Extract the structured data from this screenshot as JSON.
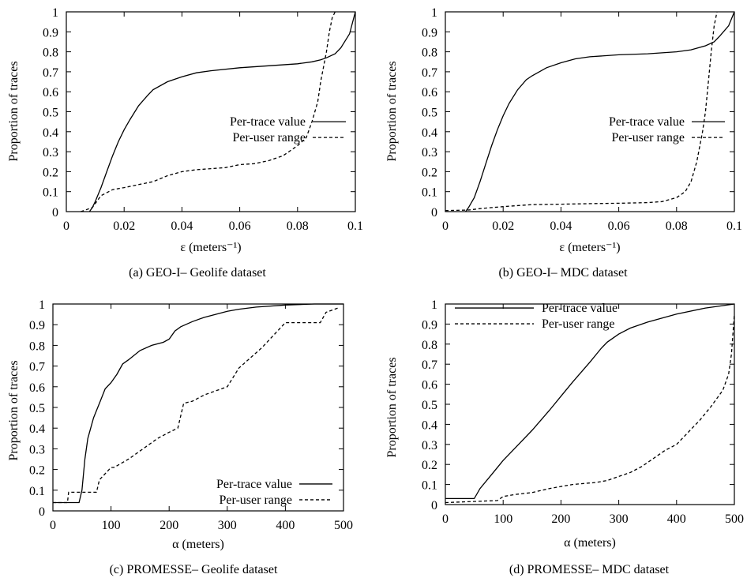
{
  "chart_data": [
    {
      "type": "line",
      "panel_caption": "(a) GEO-I– Geolife dataset",
      "xlabel": "ε (meters⁻¹)",
      "ylabel": "Proportion of traces",
      "xlim": [
        0,
        0.1
      ],
      "ylim": [
        0,
        1
      ],
      "xticks": [
        "0",
        "0.02",
        "0.04",
        "0.06",
        "0.08",
        "0.1"
      ],
      "yticks": [
        "0",
        "0.1",
        "0.2",
        "0.3",
        "0.4",
        "0.5",
        "0.6",
        "0.7",
        "0.8",
        "0.9",
        "1"
      ],
      "grid": false,
      "legend_position": "center-right",
      "series": [
        {
          "name": "Per-trace value",
          "style": "solid",
          "x": [
            0.008,
            0.009,
            0.01,
            0.012,
            0.014,
            0.016,
            0.018,
            0.02,
            0.022,
            0.025,
            0.028,
            0.03,
            0.035,
            0.04,
            0.045,
            0.05,
            0.06,
            0.07,
            0.08,
            0.085,
            0.088,
            0.09,
            0.093,
            0.095,
            0.098,
            0.1
          ],
          "y": [
            0.0,
            0.02,
            0.05,
            0.12,
            0.2,
            0.28,
            0.35,
            0.41,
            0.46,
            0.53,
            0.58,
            0.61,
            0.65,
            0.675,
            0.695,
            0.705,
            0.72,
            0.73,
            0.74,
            0.75,
            0.76,
            0.77,
            0.79,
            0.82,
            0.89,
            1.0
          ]
        },
        {
          "name": "Per-user range",
          "style": "dashed",
          "x": [
            0.005,
            0.009,
            0.012,
            0.016,
            0.02,
            0.025,
            0.03,
            0.035,
            0.04,
            0.045,
            0.05,
            0.055,
            0.06,
            0.065,
            0.07,
            0.075,
            0.078,
            0.08,
            0.083,
            0.085,
            0.087,
            0.088,
            0.09,
            0.091,
            0.092,
            0.093
          ],
          "y": [
            0.0,
            0.02,
            0.08,
            0.11,
            0.12,
            0.135,
            0.15,
            0.18,
            0.2,
            0.21,
            0.215,
            0.22,
            0.235,
            0.24,
            0.255,
            0.28,
            0.31,
            0.33,
            0.37,
            0.45,
            0.55,
            0.65,
            0.8,
            0.9,
            0.97,
            1.0
          ]
        }
      ]
    },
    {
      "type": "line",
      "panel_caption": "(b) GEO-I– MDC dataset",
      "xlabel": "ε (meters⁻¹)",
      "ylabel": "Proportion of traces",
      "xlim": [
        0,
        0.1
      ],
      "ylim": [
        0,
        1
      ],
      "xticks": [
        "0",
        "0.02",
        "0.04",
        "0.06",
        "0.08",
        "0.1"
      ],
      "yticks": [
        "0",
        "0.1",
        "0.2",
        "0.3",
        "0.4",
        "0.5",
        "0.6",
        "0.7",
        "0.8",
        "0.9",
        "1"
      ],
      "grid": false,
      "legend_position": "center-right",
      "series": [
        {
          "name": "Per-trace value",
          "style": "solid",
          "x": [
            0.007,
            0.008,
            0.01,
            0.012,
            0.014,
            0.016,
            0.018,
            0.02,
            0.022,
            0.025,
            0.028,
            0.03,
            0.035,
            0.04,
            0.045,
            0.05,
            0.06,
            0.07,
            0.08,
            0.085,
            0.09,
            0.093,
            0.095,
            0.098,
            0.1
          ],
          "y": [
            0.0,
            0.02,
            0.07,
            0.15,
            0.24,
            0.33,
            0.41,
            0.48,
            0.54,
            0.61,
            0.66,
            0.68,
            0.72,
            0.745,
            0.765,
            0.775,
            0.785,
            0.79,
            0.8,
            0.81,
            0.83,
            0.85,
            0.88,
            0.93,
            1.0
          ]
        },
        {
          "name": "Per-user range",
          "style": "dashed",
          "x": [
            0.0,
            0.008,
            0.012,
            0.016,
            0.02,
            0.03,
            0.04,
            0.05,
            0.06,
            0.07,
            0.075,
            0.08,
            0.083,
            0.085,
            0.087,
            0.089,
            0.09,
            0.091,
            0.092,
            0.093,
            0.094
          ],
          "y": [
            0.005,
            0.008,
            0.015,
            0.02,
            0.025,
            0.035,
            0.037,
            0.04,
            0.042,
            0.045,
            0.05,
            0.07,
            0.1,
            0.15,
            0.25,
            0.4,
            0.5,
            0.65,
            0.8,
            0.93,
            1.0
          ]
        }
      ]
    },
    {
      "type": "line",
      "panel_caption": "(c) PROMESSE– Geolife dataset",
      "xlabel": "α (meters)",
      "ylabel": "Proportion of traces",
      "xlim": [
        0,
        500
      ],
      "ylim": [
        0,
        1
      ],
      "xticks": [
        "0",
        "100",
        "200",
        "300",
        "400",
        "500"
      ],
      "yticks": [
        "0",
        "0.1",
        "0.2",
        "0.3",
        "0.4",
        "0.5",
        "0.6",
        "0.7",
        "0.8",
        "0.9",
        "1"
      ],
      "grid": false,
      "legend_position": "bottom-right",
      "series": [
        {
          "name": "Per-trace value",
          "style": "solid",
          "x": [
            0,
            45,
            50,
            55,
            60,
            70,
            80,
            90,
            100,
            110,
            120,
            130,
            150,
            170,
            190,
            200,
            210,
            220,
            240,
            260,
            280,
            300,
            320,
            350,
            400,
            450,
            500
          ],
          "y": [
            0.04,
            0.04,
            0.1,
            0.25,
            0.35,
            0.45,
            0.52,
            0.59,
            0.62,
            0.66,
            0.71,
            0.73,
            0.775,
            0.8,
            0.815,
            0.83,
            0.87,
            0.89,
            0.915,
            0.935,
            0.95,
            0.965,
            0.975,
            0.985,
            0.995,
            1.0,
            1.0
          ]
        },
        {
          "name": "Per-user range",
          "style": "dashed",
          "x": [
            0,
            25,
            27,
            40,
            55,
            75,
            80,
            100,
            105,
            130,
            160,
            180,
            200,
            215,
            225,
            240,
            260,
            280,
            300,
            320,
            340,
            360,
            380,
            400,
            420,
            460,
            470,
            490
          ],
          "y": [
            0.04,
            0.04,
            0.09,
            0.09,
            0.09,
            0.09,
            0.15,
            0.21,
            0.21,
            0.25,
            0.31,
            0.35,
            0.38,
            0.4,
            0.52,
            0.53,
            0.56,
            0.58,
            0.6,
            0.69,
            0.74,
            0.79,
            0.85,
            0.91,
            0.91,
            0.91,
            0.96,
            0.98
          ]
        }
      ]
    },
    {
      "type": "line",
      "panel_caption": "(d) PROMESSE– MDC dataset",
      "xlabel": "α (meters)",
      "ylabel": "Proportion of traces",
      "xlim": [
        0,
        500
      ],
      "ylim": [
        0,
        1
      ],
      "xticks": [
        "0",
        "100",
        "200",
        "300",
        "400",
        "500"
      ],
      "yticks": [
        "0",
        "0.1",
        "0.2",
        "0.3",
        "0.4",
        "0.5",
        "0.6",
        "0.7",
        "0.8",
        "0.9",
        "1"
      ],
      "grid": false,
      "legend_position": "top-left",
      "series": [
        {
          "name": "Per-trace value",
          "style": "solid",
          "x": [
            0,
            50,
            60,
            80,
            100,
            120,
            150,
            180,
            200,
            220,
            250,
            270,
            280,
            300,
            320,
            350,
            400,
            450,
            500
          ],
          "y": [
            0.03,
            0.03,
            0.08,
            0.15,
            0.22,
            0.28,
            0.37,
            0.47,
            0.54,
            0.61,
            0.71,
            0.78,
            0.81,
            0.85,
            0.88,
            0.91,
            0.95,
            0.98,
            1.0
          ]
        },
        {
          "name": "Per-user range",
          "style": "dashed",
          "x": [
            0,
            90,
            100,
            120,
            150,
            180,
            200,
            220,
            240,
            260,
            280,
            300,
            320,
            340,
            360,
            380,
            400,
            420,
            440,
            460,
            480,
            490,
            495,
            500
          ],
          "y": [
            0.01,
            0.02,
            0.04,
            0.05,
            0.06,
            0.08,
            0.09,
            0.1,
            0.105,
            0.11,
            0.12,
            0.14,
            0.16,
            0.19,
            0.23,
            0.27,
            0.3,
            0.36,
            0.42,
            0.49,
            0.57,
            0.65,
            0.75,
            0.95
          ]
        }
      ]
    }
  ]
}
